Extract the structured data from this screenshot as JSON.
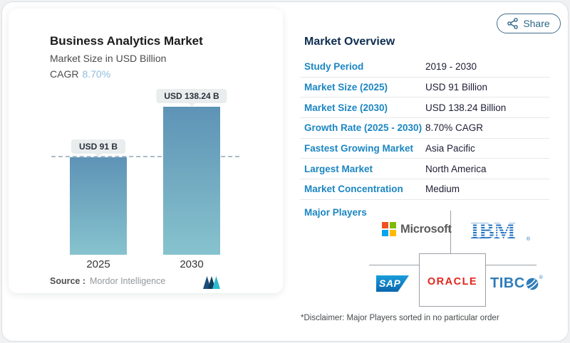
{
  "share": {
    "label": "Share"
  },
  "chart": {
    "title": "Business Analytics Market",
    "subtitle": "Market Size in USD Billion",
    "cagr_label": "CAGR",
    "cagr_value": "8.70%",
    "source_label": "Source :",
    "source_value": "Mordor Intelligence"
  },
  "chart_data": {
    "type": "bar",
    "categories": [
      "2025",
      "2030"
    ],
    "values": [
      91,
      138.24
    ],
    "bar_labels": [
      "USD 91 B",
      "USD 138.24 B"
    ],
    "title": "Business Analytics Market",
    "subtitle": "Market Size in USD Billion",
    "ylabel": "USD Billion",
    "ylim": [
      0,
      140
    ],
    "grid": false,
    "legend": false,
    "reference_line_value": 91,
    "colors": {
      "bar_gradient_top": "#5e93b6",
      "bar_gradient_bottom": "#87c3ce",
      "reference_line": "#a9bcc9"
    }
  },
  "overview": {
    "title": "Market Overview",
    "rows": [
      {
        "label": "Study Period",
        "value": "2019 - 2030"
      },
      {
        "label": "Market Size (2025)",
        "value": "USD 91 Billion"
      },
      {
        "label": "Market Size (2030)",
        "value": "USD 138.24 Billion"
      },
      {
        "label": "Growth Rate (2025 - 2030)",
        "value": "8.70% CAGR"
      },
      {
        "label": "Fastest Growing Market",
        "value": "Asia Pacific"
      },
      {
        "label": "Largest Market",
        "value": "North America"
      },
      {
        "label": "Market Concentration",
        "value": "Medium"
      }
    ],
    "major_players_label": "Major Players",
    "players": {
      "microsoft": {
        "name": "Microsoft",
        "text": "Microsoft"
      },
      "ibm": {
        "name": "IBM",
        "text": "IBM",
        "reg_mark": "®"
      },
      "sap": {
        "name": "SAP",
        "text": "SAP"
      },
      "oracle": {
        "name": "Oracle",
        "text": "ORACLE"
      },
      "tibco": {
        "name": "TIBCO",
        "text": "TIBC",
        "reg_mark": "®"
      }
    },
    "disclaimer": "*Disclaimer: Major Players sorted in no particular order"
  },
  "colors": {
    "accent_blue": "#1b86c2",
    "navy_text": "#0e2d4f",
    "share_teal": "#2e6689",
    "cagr_light_blue": "#8fbcdd",
    "ibm_blue": "#1f70c1",
    "oracle_red": "#e1251b",
    "tibco_blue": "#2f7cba",
    "sap_blue": "#0a66ad"
  }
}
